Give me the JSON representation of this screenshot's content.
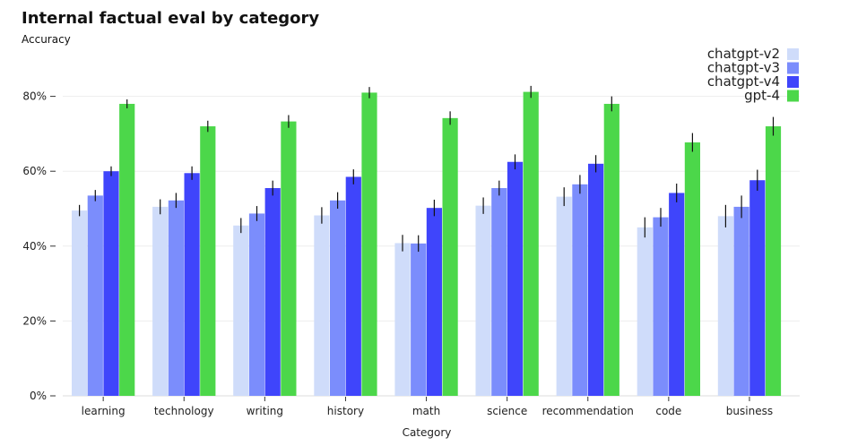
{
  "chart_data": {
    "type": "bar",
    "title": "Internal factual eval by category",
    "ylabel": "Accuracy",
    "xlabel": "Category",
    "ylim": [
      0,
      0.9
    ],
    "y_ticks": [
      "0%",
      "20%",
      "40%",
      "60%",
      "80%"
    ],
    "categories": [
      "learning",
      "technology",
      "writing",
      "history",
      "math",
      "science",
      "recommendation",
      "code",
      "business"
    ],
    "series": [
      {
        "name": "chatgpt-v2",
        "color": "#cfdcfa",
        "values": [
          0.495,
          0.505,
          0.455,
          0.482,
          0.408,
          0.508,
          0.532,
          0.45,
          0.48
        ],
        "errors": [
          0.015,
          0.02,
          0.02,
          0.022,
          0.022,
          0.022,
          0.025,
          0.027,
          0.03
        ]
      },
      {
        "name": "chatgpt-v3",
        "color": "#7b8dfc",
        "values": [
          0.535,
          0.522,
          0.487,
          0.522,
          0.407,
          0.555,
          0.565,
          0.477,
          0.505
        ],
        "errors": [
          0.015,
          0.02,
          0.02,
          0.022,
          0.022,
          0.02,
          0.025,
          0.025,
          0.03
        ]
      },
      {
        "name": "chatgpt-v4",
        "color": "#3f45fb",
        "values": [
          0.6,
          0.595,
          0.555,
          0.585,
          0.502,
          0.625,
          0.62,
          0.542,
          0.576
        ],
        "errors": [
          0.013,
          0.018,
          0.02,
          0.02,
          0.022,
          0.02,
          0.023,
          0.025,
          0.028
        ]
      },
      {
        "name": "gpt-4",
        "color": "#4cd74a",
        "values": [
          0.78,
          0.72,
          0.733,
          0.81,
          0.742,
          0.812,
          0.78,
          0.677,
          0.72
        ],
        "errors": [
          0.012,
          0.015,
          0.017,
          0.015,
          0.018,
          0.016,
          0.02,
          0.025,
          0.025
        ]
      }
    ],
    "legend": "top-right",
    "grid": true
  }
}
